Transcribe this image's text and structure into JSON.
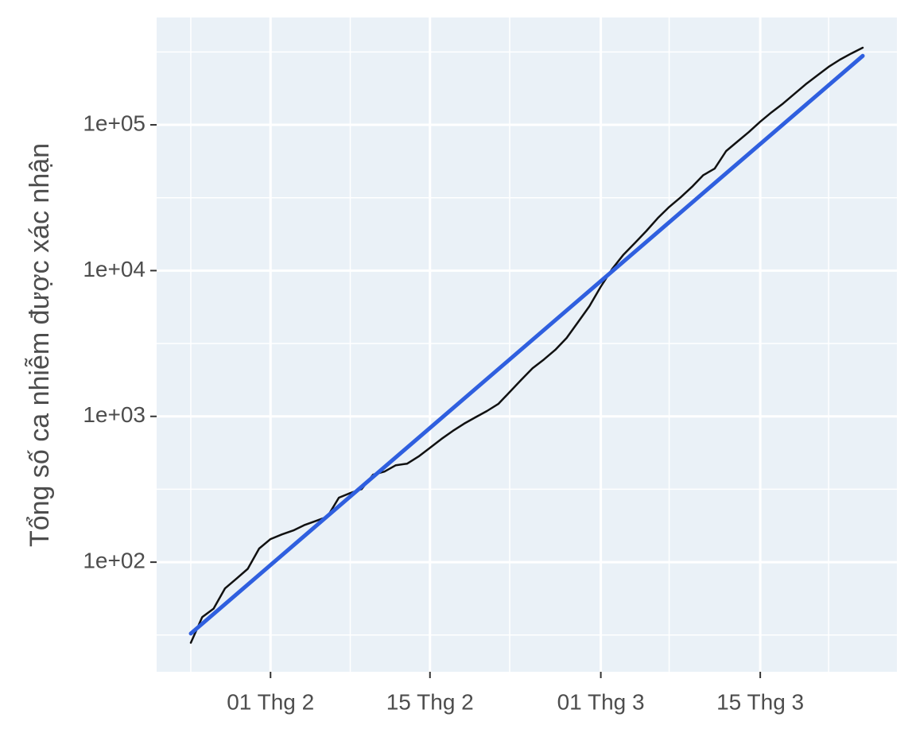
{
  "chart_data": {
    "type": "line",
    "y_label": "Tổng số ca nhiễm được xác nhận",
    "log_y": true,
    "grid": true,
    "xlim": [
      "01-22",
      "03-27"
    ],
    "xticks": [
      {
        "value": "02-01",
        "label": "01 Thg 2"
      },
      {
        "value": "02-15",
        "label": "15 Thg 2"
      },
      {
        "value": "03-01",
        "label": "01 Thg 3"
      },
      {
        "value": "03-15",
        "label": "15 Thg 3"
      }
    ],
    "ylim": [
      17.7,
      545000
    ],
    "yticks": [
      {
        "value": 100,
        "label": "1e+02"
      },
      {
        "value": 1000,
        "label": "1e+03"
      },
      {
        "value": 10000,
        "label": "1e+04"
      },
      {
        "value": 100000,
        "label": "1e+05"
      }
    ],
    "series": [
      {
        "color": "#111111",
        "width": 2.5,
        "x": [
          "01-25",
          "01-26",
          "01-27",
          "01-28",
          "01-29",
          "01-30",
          "01-31",
          "02-01",
          "02-02",
          "02-03",
          "02-04",
          "02-05",
          "02-06",
          "02-07",
          "02-08",
          "02-09",
          "02-10",
          "02-11",
          "02-12",
          "02-13",
          "02-14",
          "02-15",
          "02-16",
          "02-17",
          "02-18",
          "02-19",
          "02-20",
          "02-21",
          "02-22",
          "02-23",
          "02-24",
          "02-25",
          "02-26",
          "02-27",
          "02-28",
          "02-29",
          "03-01",
          "03-02",
          "03-03",
          "03-04",
          "03-05",
          "03-06",
          "03-07",
          "03-08",
          "03-09",
          "03-10",
          "03-11",
          "03-12",
          "03-13",
          "03-14",
          "03-15",
          "03-16",
          "03-17",
          "03-18",
          "03-19",
          "03-20",
          "03-21",
          "03-22",
          "03-23",
          "03-24"
        ],
        "values": [
          28,
          42,
          48,
          66,
          77,
          90,
          124,
          144,
          155,
          165,
          180,
          192,
          205,
          277,
          298,
          317,
          398,
          418,
          462,
          474,
          531,
          609,
          700,
          794,
          891,
          986,
          1088,
          1217,
          1469,
          1777,
          2138,
          2455,
          2858,
          3451,
          4436,
          5703,
          7770,
          10270,
          12880,
          15500,
          18700,
          22900,
          27300,
          31800,
          37500,
          45200,
          50100,
          66100,
          76800,
          89200,
          105000,
          122000,
          140000,
          163000,
          190000,
          218000,
          250000,
          280000,
          309000,
          338000
        ]
      },
      {
        "color": "#2f5fdf",
        "width": 5,
        "x": [
          "01-25",
          "03-24"
        ],
        "values": [
          32.4,
          297000
        ]
      }
    ]
  }
}
